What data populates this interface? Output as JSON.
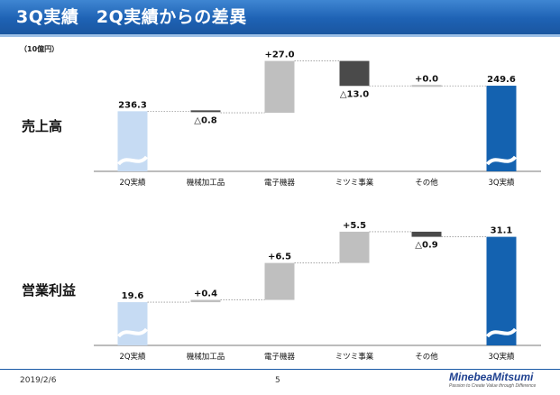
{
  "header": {
    "title": "3Q実績　2Q実績からの差異"
  },
  "unit": "（10億円）",
  "footer": {
    "date": "2019/2/6",
    "page": "5"
  },
  "logo": {
    "name": "MinebeaMitsumi",
    "tagline": "Passion to Create Value through Difference"
  },
  "colors": {
    "start": "#c6dbf3",
    "positive": "#bfbfbf",
    "negative": "#4a4a4a",
    "end": "#1462b0",
    "header": "#1e62b4"
  },
  "chart_data": [
    {
      "type": "bar",
      "title": "売上高",
      "categories": [
        "2Q実績",
        "機械加工品",
        "電子機器",
        "ミツミ事業",
        "その他",
        "3Q実績"
      ],
      "start": {
        "value": 236.3,
        "label": "236.3"
      },
      "changes": [
        {
          "value": -0.8,
          "label": "△0.8"
        },
        {
          "value": 27.0,
          "label": "+27.0"
        },
        {
          "value": -13.0,
          "label": "△13.0"
        },
        {
          "value": 0.0,
          "label": "+0.0"
        }
      ],
      "end": {
        "value": 249.6,
        "label": "249.6"
      },
      "axis_break": true
    },
    {
      "type": "bar",
      "title": "営業利益",
      "categories": [
        "2Q実績",
        "機械加工品",
        "電子機器",
        "ミツミ事業",
        "その他",
        "3Q実績"
      ],
      "start": {
        "value": 19.6,
        "label": "19.6"
      },
      "changes": [
        {
          "value": 0.4,
          "label": "+0.4"
        },
        {
          "value": 6.5,
          "label": "+6.5"
        },
        {
          "value": 5.5,
          "label": "+5.5"
        },
        {
          "value": -0.9,
          "label": "△0.9"
        }
      ],
      "end": {
        "value": 31.1,
        "label": "31.1"
      },
      "axis_break": true
    }
  ]
}
